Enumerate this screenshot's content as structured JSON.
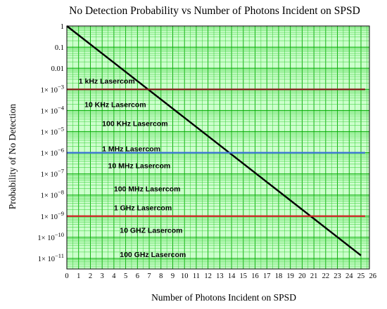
{
  "chart_data": {
    "type": "line",
    "title": "No Detection Probability vs Number of Photons Incident on SPSD",
    "xlabel": "Number of Photons Incident on SPSD",
    "ylabel": "Probability of No Detection",
    "xlim": [
      0,
      25
    ],
    "ylim_log10": [
      -11.5,
      0
    ],
    "yscale": "log",
    "grid": true,
    "colors": {
      "plot_bg": "#ccffcc",
      "grid_minor": "#33cc33",
      "grid_major": "#00aa00",
      "curve": "#000000"
    },
    "x_ticks": [
      "0",
      "1",
      "2",
      "3",
      "4",
      "5",
      "6",
      "7",
      "8",
      "9",
      "10",
      "11",
      "12",
      "13",
      "14",
      "15",
      "16",
      "17",
      "18",
      "19",
      "20",
      "21",
      "22",
      "23",
      "24",
      "25",
      "26"
    ],
    "y_ticks": [
      {
        "exp": 0,
        "label": "1",
        "sup": ""
      },
      {
        "exp": -1,
        "label": "0.1",
        "sup": ""
      },
      {
        "exp": -2,
        "label": "0.01",
        "sup": ""
      },
      {
        "exp": -3,
        "label": "1× 10",
        "sup": "−3"
      },
      {
        "exp": -4,
        "label": "1× 10",
        "sup": "−4"
      },
      {
        "exp": -5,
        "label": "1× 10",
        "sup": "−5"
      },
      {
        "exp": -6,
        "label": "1× 10",
        "sup": "−6"
      },
      {
        "exp": -7,
        "label": "1× 10",
        "sup": "−7"
      },
      {
        "exp": -8,
        "label": "1× 10",
        "sup": "−8"
      },
      {
        "exp": -9,
        "label": "1× 10",
        "sup": "−9"
      },
      {
        "exp": -10,
        "label": "1× 10",
        "sup": "−10"
      },
      {
        "exp": -11,
        "label": "1× 10",
        "sup": "−11"
      }
    ],
    "series": [
      {
        "kind": "curve",
        "color": "#000000",
        "x": [
          0,
          25
        ],
        "y_log10": [
          0,
          -10.86
        ]
      },
      {
        "kind": "hline",
        "color": "#8b2020",
        "y_log10": -3
      },
      {
        "kind": "hline",
        "color": "#3a6fd8",
        "y_log10": -6
      },
      {
        "kind": "hline",
        "color": "#cc2222",
        "y_log10": -9
      }
    ],
    "annotations": [
      {
        "text": "1 kHz Lasercom",
        "x": 1.0,
        "y_log10": -2.6
      },
      {
        "text": "10 KHz Lasercom",
        "x": 1.5,
        "y_log10": -3.7
      },
      {
        "text": "100 KHz Lasercom",
        "x": 3.0,
        "y_log10": -4.6
      },
      {
        "text": "1 MHz Lasercom",
        "x": 3.0,
        "y_log10": -5.8
      },
      {
        "text": "10 MHz Lasercom",
        "x": 3.5,
        "y_log10": -6.6
      },
      {
        "text": "100 MHz Lasercom",
        "x": 4.0,
        "y_log10": -7.7
      },
      {
        "text": "1 GHz Lasercom",
        "x": 4.0,
        "y_log10": -8.6
      },
      {
        "text": "10 GHZ Lasercom",
        "x": 4.5,
        "y_log10": -9.65
      },
      {
        "text": "100 GHz Lasercom",
        "x": 4.5,
        "y_log10": -10.8
      }
    ]
  }
}
